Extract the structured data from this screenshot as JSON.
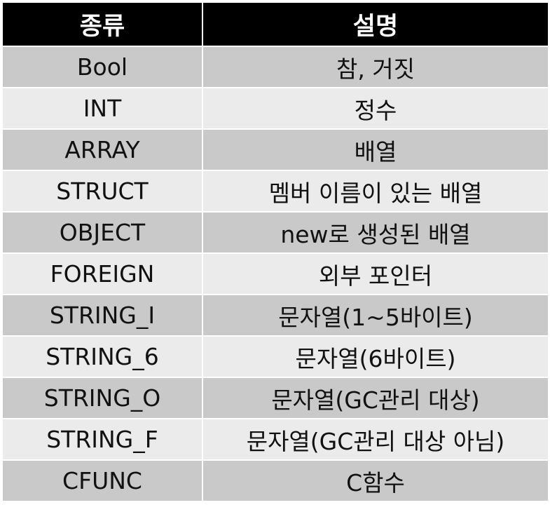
{
  "header": {
    "type_label": "종류",
    "desc_label": "설명"
  },
  "rows": [
    {
      "type": "Bool",
      "desc": "참, 거짓"
    },
    {
      "type": "INT",
      "desc": "정수"
    },
    {
      "type": "ARRAY",
      "desc": "배열"
    },
    {
      "type": "STRUCT",
      "desc": "멤버 이름이 있는 배열"
    },
    {
      "type": "OBJECT",
      "desc": "new로 생성된 배열"
    },
    {
      "type": "FOREIGN",
      "desc": "외부 포인터"
    },
    {
      "type": "STRING_I",
      "desc": "문자열(1~5바이트)"
    },
    {
      "type": "STRING_6",
      "desc": "문자열(6바이트)"
    },
    {
      "type": "STRING_O",
      "desc": "문자열(GC관리 대상)"
    },
    {
      "type": "STRING_F",
      "desc": "문자열(GC관리 대상 아님)"
    },
    {
      "type": "CFUNC",
      "desc": "C함수"
    }
  ],
  "colors": {
    "header_bg": "#000000",
    "row_shade": "#c9c9c9",
    "row_plain": "#ebebeb",
    "border": "#ffffff"
  }
}
